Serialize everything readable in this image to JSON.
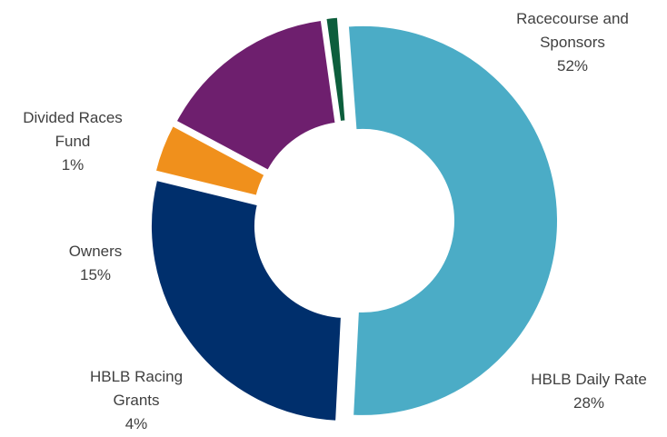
{
  "chart_data": {
    "type": "pie",
    "donut": true,
    "exploded": true,
    "title": "",
    "legend": "none",
    "slices": [
      {
        "name_lines": [
          "Racecourse and",
          "Sponsors"
        ],
        "value": 52,
        "label": "52%",
        "color": "#4BACC6"
      },
      {
        "name_lines": [
          "HBLB Daily Rate"
        ],
        "value": 28,
        "label": "28%",
        "color": "#002F6C"
      },
      {
        "name_lines": [
          "HBLB Racing",
          "Grants"
        ],
        "value": 4,
        "label": "4%",
        "color": "#F0901C"
      },
      {
        "name_lines": [
          "Owners"
        ],
        "value": 15,
        "label": "15%",
        "color": "#6E1F6E"
      },
      {
        "name_lines": [
          "Divided Races",
          "Fund"
        ],
        "value": 1,
        "label": "1%",
        "color": "#0C5E3C"
      }
    ]
  }
}
